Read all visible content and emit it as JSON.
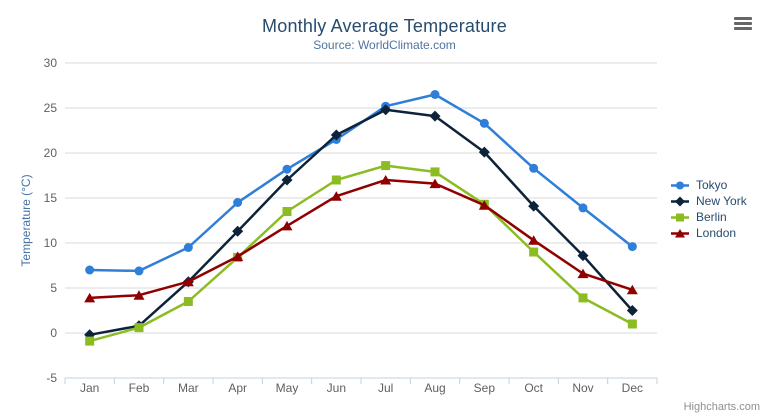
{
  "chart_data": {
    "type": "line",
    "title": "Monthly Average Temperature",
    "subtitle": "Source: WorldClimate.com",
    "categories": [
      "Jan",
      "Feb",
      "Mar",
      "Apr",
      "May",
      "Jun",
      "Jul",
      "Aug",
      "Sep",
      "Oct",
      "Nov",
      "Dec"
    ],
    "xlabel": "",
    "ylabel": "Temperature (°C)",
    "ylim": [
      -5,
      30
    ],
    "ytick_step": 5,
    "yticks": [
      -5,
      0,
      5,
      10,
      15,
      20,
      25,
      30
    ],
    "grid": true,
    "legend_position": "right",
    "series": [
      {
        "name": "Tokyo",
        "color": "#2f7ed8",
        "marker": "circle",
        "values": [
          7.0,
          6.9,
          9.5,
          14.5,
          18.2,
          21.5,
          25.2,
          26.5,
          23.3,
          18.3,
          13.9,
          9.6
        ]
      },
      {
        "name": "New York",
        "color": "#0d233a",
        "marker": "diamond",
        "values": [
          -0.2,
          0.8,
          5.7,
          11.3,
          17.0,
          22.0,
          24.8,
          24.1,
          20.1,
          14.1,
          8.6,
          2.5
        ]
      },
      {
        "name": "Berlin",
        "color": "#8bbc21",
        "marker": "square",
        "values": [
          -0.9,
          0.6,
          3.5,
          8.4,
          13.5,
          17.0,
          18.6,
          17.9,
          14.3,
          9.0,
          3.9,
          1.0
        ]
      },
      {
        "name": "London",
        "color": "#910000",
        "marker": "triangle",
        "values": [
          3.9,
          4.2,
          5.7,
          8.5,
          11.9,
          15.2,
          17.0,
          16.6,
          14.2,
          10.3,
          6.6,
          4.8
        ]
      }
    ]
  },
  "toolbar": {
    "export_icon": "hamburger-icon"
  },
  "credits_label": "Highcharts.com",
  "colors": {
    "title": "#274b6d",
    "subtitle": "#4d759e",
    "axis_labels": "#606060",
    "y_axis_title": "#4572a7",
    "grid_line": "#d8d8d8",
    "axis_line": "#c0d0e0",
    "legend_text": "#274b6d",
    "export_icon": "#666666",
    "credits": "#8f8f8f"
  }
}
